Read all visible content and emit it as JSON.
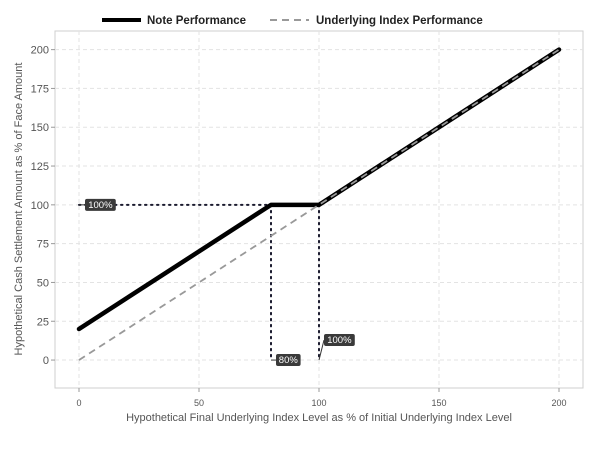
{
  "chart_data": {
    "type": "line",
    "title": "",
    "xlabel": "Hypothetical Final Underlying Index Level as % of Initial Underlying Index Level",
    "ylabel": "Hypothetical Cash Settlement Amount as % of Face Amount",
    "xlim": [
      -10,
      210
    ],
    "ylim": [
      -18,
      212
    ],
    "x_ticks": [
      0,
      50,
      100,
      150,
      200
    ],
    "y_ticks": [
      0,
      25,
      50,
      75,
      100,
      125,
      150,
      175,
      200
    ],
    "x_tick_labels": [
      "0",
      "50",
      "100",
      "150",
      "200"
    ],
    "y_tick_labels": [
      "0",
      "25",
      "50",
      "75",
      "100",
      "125",
      "150",
      "175",
      "200"
    ],
    "grid": true,
    "legend_position": "top",
    "series": [
      {
        "name": "Note Performance",
        "style": "solid-thick",
        "color": "#000000",
        "x": [
          0,
          80,
          100,
          200
        ],
        "y": [
          20,
          100,
          100,
          200
        ]
      },
      {
        "name": "Underlying Index Performance",
        "style": "dashed",
        "color": "#999999",
        "x": [
          0,
          200
        ],
        "y": [
          0,
          200
        ]
      }
    ],
    "guides": [
      {
        "from": [
          0,
          100
        ],
        "to": [
          100,
          100
        ]
      },
      {
        "from": [
          80,
          100
        ],
        "to": [
          80,
          0
        ]
      },
      {
        "from": [
          100,
          100
        ],
        "to": [
          100,
          0
        ]
      }
    ],
    "annotations": [
      {
        "text": "100%",
        "x": 0,
        "y": 100
      },
      {
        "text": "80%",
        "x": 80,
        "y": 0
      },
      {
        "text": "100%",
        "x": 100,
        "y": 0
      }
    ]
  }
}
